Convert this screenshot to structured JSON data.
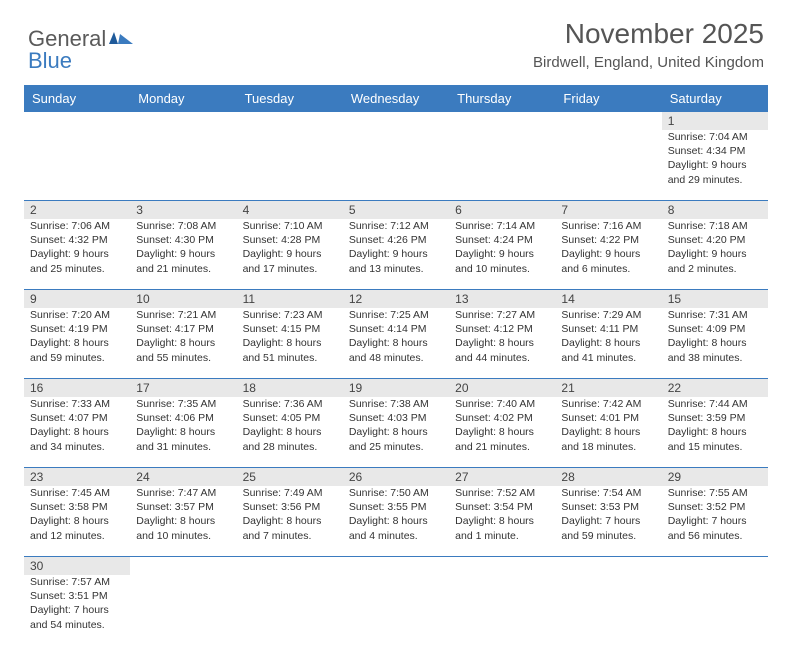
{
  "brand": {
    "part1": "General",
    "part2": "Blue"
  },
  "title": "November 2025",
  "location": "Birdwell, England, United Kingdom",
  "colors": {
    "header_bg": "#3b7bbf",
    "daynum_bg": "#e8e8e8",
    "text": "#333333",
    "title_text": "#555555"
  },
  "day_labels": [
    "Sunday",
    "Monday",
    "Tuesday",
    "Wednesday",
    "Thursday",
    "Friday",
    "Saturday"
  ],
  "weeks": [
    [
      null,
      null,
      null,
      null,
      null,
      null,
      {
        "n": "1",
        "sr": "Sunrise: 7:04 AM",
        "ss": "Sunset: 4:34 PM",
        "dl1": "Daylight: 9 hours",
        "dl2": "and 29 minutes."
      }
    ],
    [
      {
        "n": "2",
        "sr": "Sunrise: 7:06 AM",
        "ss": "Sunset: 4:32 PM",
        "dl1": "Daylight: 9 hours",
        "dl2": "and 25 minutes."
      },
      {
        "n": "3",
        "sr": "Sunrise: 7:08 AM",
        "ss": "Sunset: 4:30 PM",
        "dl1": "Daylight: 9 hours",
        "dl2": "and 21 minutes."
      },
      {
        "n": "4",
        "sr": "Sunrise: 7:10 AM",
        "ss": "Sunset: 4:28 PM",
        "dl1": "Daylight: 9 hours",
        "dl2": "and 17 minutes."
      },
      {
        "n": "5",
        "sr": "Sunrise: 7:12 AM",
        "ss": "Sunset: 4:26 PM",
        "dl1": "Daylight: 9 hours",
        "dl2": "and 13 minutes."
      },
      {
        "n": "6",
        "sr": "Sunrise: 7:14 AM",
        "ss": "Sunset: 4:24 PM",
        "dl1": "Daylight: 9 hours",
        "dl2": "and 10 minutes."
      },
      {
        "n": "7",
        "sr": "Sunrise: 7:16 AM",
        "ss": "Sunset: 4:22 PM",
        "dl1": "Daylight: 9 hours",
        "dl2": "and 6 minutes."
      },
      {
        "n": "8",
        "sr": "Sunrise: 7:18 AM",
        "ss": "Sunset: 4:20 PM",
        "dl1": "Daylight: 9 hours",
        "dl2": "and 2 minutes."
      }
    ],
    [
      {
        "n": "9",
        "sr": "Sunrise: 7:20 AM",
        "ss": "Sunset: 4:19 PM",
        "dl1": "Daylight: 8 hours",
        "dl2": "and 59 minutes."
      },
      {
        "n": "10",
        "sr": "Sunrise: 7:21 AM",
        "ss": "Sunset: 4:17 PM",
        "dl1": "Daylight: 8 hours",
        "dl2": "and 55 minutes."
      },
      {
        "n": "11",
        "sr": "Sunrise: 7:23 AM",
        "ss": "Sunset: 4:15 PM",
        "dl1": "Daylight: 8 hours",
        "dl2": "and 51 minutes."
      },
      {
        "n": "12",
        "sr": "Sunrise: 7:25 AM",
        "ss": "Sunset: 4:14 PM",
        "dl1": "Daylight: 8 hours",
        "dl2": "and 48 minutes."
      },
      {
        "n": "13",
        "sr": "Sunrise: 7:27 AM",
        "ss": "Sunset: 4:12 PM",
        "dl1": "Daylight: 8 hours",
        "dl2": "and 44 minutes."
      },
      {
        "n": "14",
        "sr": "Sunrise: 7:29 AM",
        "ss": "Sunset: 4:11 PM",
        "dl1": "Daylight: 8 hours",
        "dl2": "and 41 minutes."
      },
      {
        "n": "15",
        "sr": "Sunrise: 7:31 AM",
        "ss": "Sunset: 4:09 PM",
        "dl1": "Daylight: 8 hours",
        "dl2": "and 38 minutes."
      }
    ],
    [
      {
        "n": "16",
        "sr": "Sunrise: 7:33 AM",
        "ss": "Sunset: 4:07 PM",
        "dl1": "Daylight: 8 hours",
        "dl2": "and 34 minutes."
      },
      {
        "n": "17",
        "sr": "Sunrise: 7:35 AM",
        "ss": "Sunset: 4:06 PM",
        "dl1": "Daylight: 8 hours",
        "dl2": "and 31 minutes."
      },
      {
        "n": "18",
        "sr": "Sunrise: 7:36 AM",
        "ss": "Sunset: 4:05 PM",
        "dl1": "Daylight: 8 hours",
        "dl2": "and 28 minutes."
      },
      {
        "n": "19",
        "sr": "Sunrise: 7:38 AM",
        "ss": "Sunset: 4:03 PM",
        "dl1": "Daylight: 8 hours",
        "dl2": "and 25 minutes."
      },
      {
        "n": "20",
        "sr": "Sunrise: 7:40 AM",
        "ss": "Sunset: 4:02 PM",
        "dl1": "Daylight: 8 hours",
        "dl2": "and 21 minutes."
      },
      {
        "n": "21",
        "sr": "Sunrise: 7:42 AM",
        "ss": "Sunset: 4:01 PM",
        "dl1": "Daylight: 8 hours",
        "dl2": "and 18 minutes."
      },
      {
        "n": "22",
        "sr": "Sunrise: 7:44 AM",
        "ss": "Sunset: 3:59 PM",
        "dl1": "Daylight: 8 hours",
        "dl2": "and 15 minutes."
      }
    ],
    [
      {
        "n": "23",
        "sr": "Sunrise: 7:45 AM",
        "ss": "Sunset: 3:58 PM",
        "dl1": "Daylight: 8 hours",
        "dl2": "and 12 minutes."
      },
      {
        "n": "24",
        "sr": "Sunrise: 7:47 AM",
        "ss": "Sunset: 3:57 PM",
        "dl1": "Daylight: 8 hours",
        "dl2": "and 10 minutes."
      },
      {
        "n": "25",
        "sr": "Sunrise: 7:49 AM",
        "ss": "Sunset: 3:56 PM",
        "dl1": "Daylight: 8 hours",
        "dl2": "and 7 minutes."
      },
      {
        "n": "26",
        "sr": "Sunrise: 7:50 AM",
        "ss": "Sunset: 3:55 PM",
        "dl1": "Daylight: 8 hours",
        "dl2": "and 4 minutes."
      },
      {
        "n": "27",
        "sr": "Sunrise: 7:52 AM",
        "ss": "Sunset: 3:54 PM",
        "dl1": "Daylight: 8 hours",
        "dl2": "and 1 minute."
      },
      {
        "n": "28",
        "sr": "Sunrise: 7:54 AM",
        "ss": "Sunset: 3:53 PM",
        "dl1": "Daylight: 7 hours",
        "dl2": "and 59 minutes."
      },
      {
        "n": "29",
        "sr": "Sunrise: 7:55 AM",
        "ss": "Sunset: 3:52 PM",
        "dl1": "Daylight: 7 hours",
        "dl2": "and 56 minutes."
      }
    ],
    [
      {
        "n": "30",
        "sr": "Sunrise: 7:57 AM",
        "ss": "Sunset: 3:51 PM",
        "dl1": "Daylight: 7 hours",
        "dl2": "and 54 minutes."
      },
      null,
      null,
      null,
      null,
      null,
      null
    ]
  ]
}
